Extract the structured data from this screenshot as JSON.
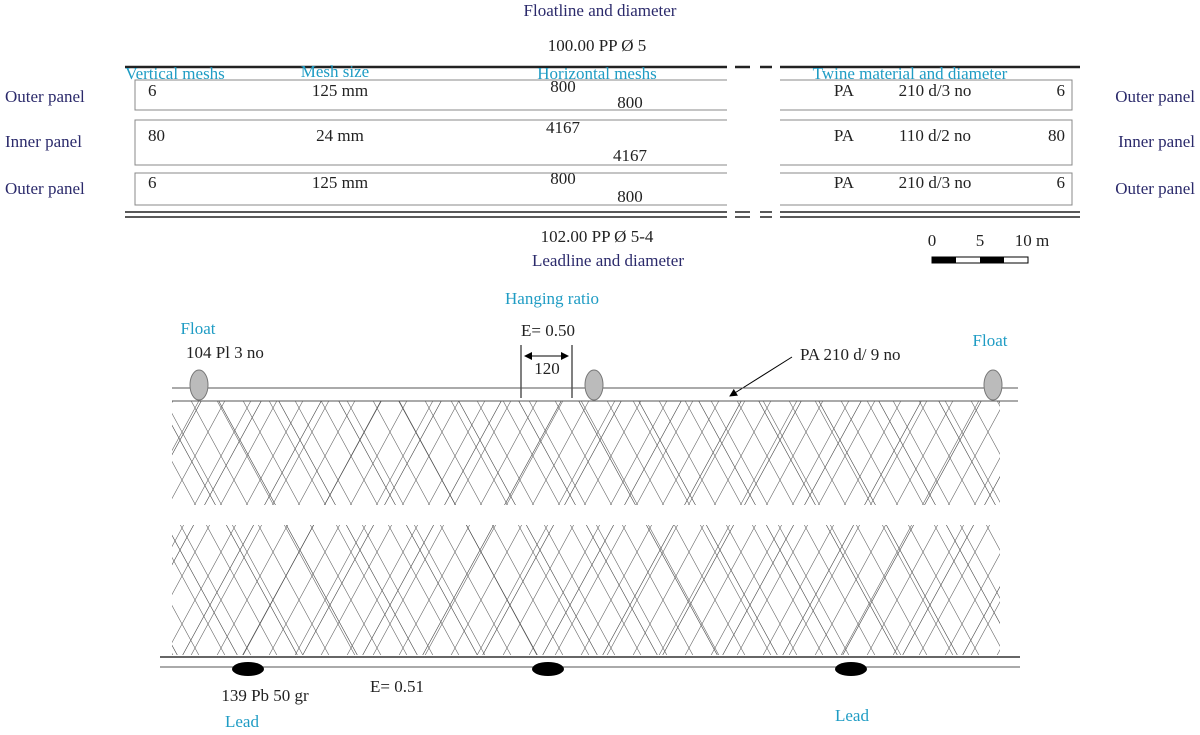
{
  "top": {
    "floatline_label": "Floatline and diameter",
    "floatline_value": "100.00 PP Ø 5",
    "leadline_value": "102.00 PP Ø 5-4",
    "leadline_label": "Leadline and diameter"
  },
  "headers": [
    "Vertical meshs",
    "Mesh size",
    "Horizontal meshs",
    "Twine material and diameter"
  ],
  "panels": [
    {
      "label": "Outer panel",
      "vertical": "6",
      "mesh_size": "125 mm",
      "horizontal_a": "800",
      "horizontal_b": "800",
      "material": "PA",
      "twine": "210 d/3 no",
      "count": "6",
      "right_label": "Outer panel"
    },
    {
      "label": "Inner panel",
      "vertical": "80",
      "mesh_size": "24 mm",
      "horizontal_a": "4167",
      "horizontal_b": "4167",
      "material": "PA",
      "twine": "110 d/2 no",
      "count": "80",
      "right_label": "Inner panel"
    },
    {
      "label": "Outer panel",
      "vertical": "6",
      "mesh_size": "125 mm",
      "horizontal_a": "800",
      "horizontal_b": "800",
      "material": "PA",
      "twine": "210 d/3 no",
      "count": "6",
      "right_label": "Outer panel"
    }
  ],
  "scale": [
    "0",
    "5",
    "10 m"
  ],
  "net": {
    "hanging_ratio": "Hanging ratio",
    "float_left": "Float",
    "float_spec": "104 Pl 3 no",
    "e_top": "E= 0.50",
    "spacing": "120",
    "twine_spec": "PA 210 d/ 9 no",
    "float_right": "Float",
    "lead_spec": "139 Pb 50 gr",
    "lead_left": "Lead",
    "e_bottom": "E= 0.51",
    "lead_right": "Lead"
  }
}
